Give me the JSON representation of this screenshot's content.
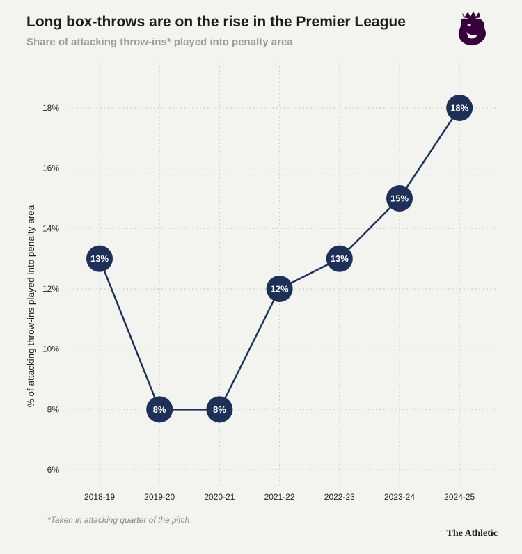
{
  "colors": {
    "marker": "#1e3057",
    "line": "#1e3057",
    "grid": "#c4c4c4",
    "brand_purple": "#37003c"
  },
  "header": {
    "title": "Long box-throws are on the rise in the Premier League",
    "subtitle": "Share of attacking throw-ins* played into penalty area"
  },
  "logo": {
    "icon": "premier-league-lion-icon"
  },
  "chart_data": {
    "type": "line",
    "categories": [
      "2018-19",
      "2019-20",
      "2020-21",
      "2021-22",
      "2022-23",
      "2023-24",
      "2024-25"
    ],
    "values": [
      13,
      8,
      8,
      12,
      13,
      15,
      18
    ],
    "data_labels": [
      "13%",
      "8%",
      "8%",
      "12%",
      "13%",
      "15%",
      "18%"
    ],
    "ylabel": "% of attacking throw-ins played into penalty area",
    "ylim": [
      6,
      18
    ],
    "yticks": [
      6,
      8,
      10,
      12,
      14,
      16,
      18
    ],
    "ytick_labels": [
      "6%",
      "8%",
      "10%",
      "12%",
      "14%",
      "16%",
      "18%"
    ],
    "grid": "dotted, both axes",
    "legend": "none"
  },
  "footer": {
    "footnote": "*Taken in attacking quarter of the pitch",
    "brand": "The Athletic"
  }
}
